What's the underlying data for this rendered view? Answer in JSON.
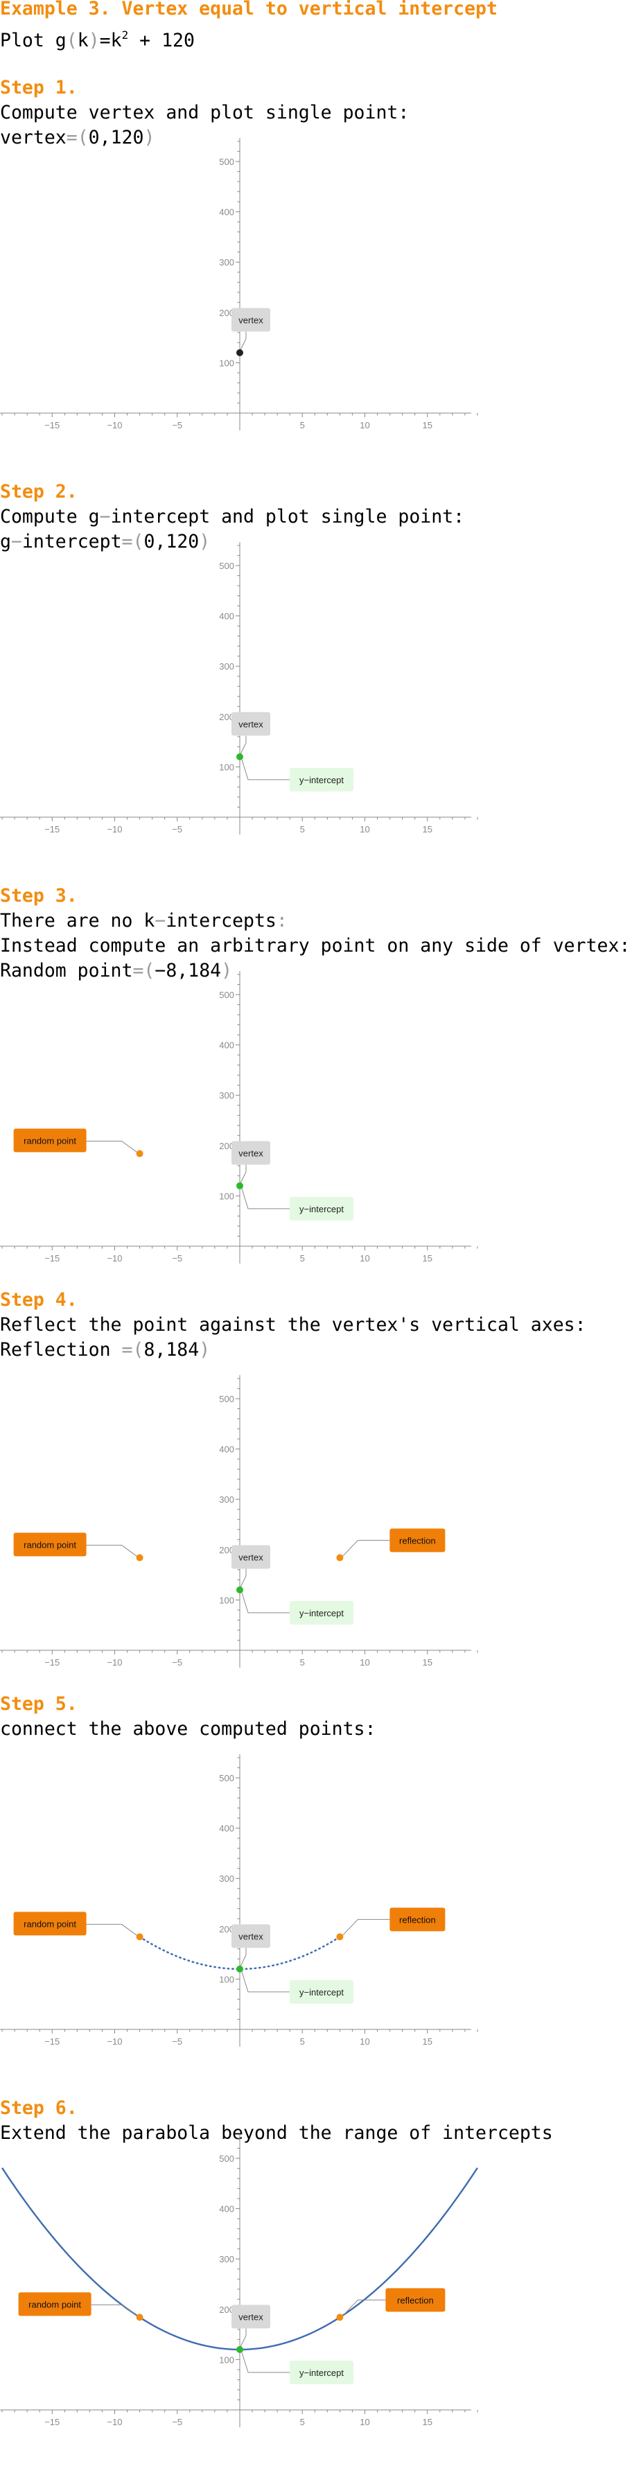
{
  "title": "Example 3. Vertex equal to vertical intercept",
  "plot_line": {
    "prefix": "Plot ",
    "fn": "g",
    "var": "k",
    "rest_pre": "=k",
    "exp": "2",
    "rest_post": " + 120"
  },
  "steps": [
    {
      "heading": "Step 1.",
      "lines": [
        [
          "Compute vertex and plot single point:"
        ],
        [
          "vertex",
          "=",
          "(",
          "0,120",
          ")"
        ]
      ]
    },
    {
      "heading": "Step 2.",
      "lines": [
        [
          "Compute g",
          "−",
          "intercept and plot single point:"
        ],
        [
          "g",
          "−",
          "intercept",
          "=",
          "(",
          "0,120",
          ")"
        ]
      ]
    },
    {
      "heading": "Step 3.",
      "lines": [
        [
          "There are no k",
          "−",
          "intercepts",
          ":"
        ],
        [
          "Instead compute an arbitrary point on any side of vertex:"
        ],
        [
          "Random point",
          "=",
          "(",
          "−8,184",
          ")"
        ]
      ]
    },
    {
      "heading": "Step 4.",
      "lines": [
        [
          "Reflect the point against the vertex's vertical axes:"
        ],
        [
          "Reflection ",
          "=",
          "(",
          "8,184",
          ")"
        ]
      ]
    },
    {
      "heading": "Step 5.",
      "lines": [
        [
          "connect the above computed points:"
        ]
      ]
    },
    {
      "heading": "Step 6.",
      "lines": [
        [
          "Extend the parabola beyond the range of intercepts"
        ]
      ]
    }
  ],
  "labels": {
    "vertex": "vertex",
    "y_intercept": "y−intercept",
    "random_point": "random point",
    "reflection": "reflection"
  },
  "colors": {
    "heading": "#f28d10",
    "vertex_point": "#222222",
    "intercept_point": "#2db82d",
    "random_point": "#f28d10",
    "curve": "#3f6cb0",
    "vertex_label_bg": "#d9d9d9",
    "intercept_label_bg": "#e4f9e1",
    "orange_label_bg": "#f07f09",
    "axis": "#888888"
  },
  "chart_data": [
    {
      "type": "scatter",
      "function": "g(k)=k^2+120",
      "xlim": [
        -19,
        19
      ],
      "ylim": [
        0,
        540
      ],
      "x_ticks": [
        -15,
        -10,
        -5,
        5,
        10,
        15
      ],
      "y_ticks": [
        100,
        200,
        300,
        400,
        500
      ],
      "points": [
        {
          "name": "vertex",
          "x": 0,
          "y": 120
        }
      ],
      "curve": "none"
    },
    {
      "type": "scatter",
      "function": "g(k)=k^2+120",
      "xlim": [
        -19,
        19
      ],
      "ylim": [
        0,
        540
      ],
      "x_ticks": [
        -15,
        -10,
        -5,
        5,
        10,
        15
      ],
      "y_ticks": [
        100,
        200,
        300,
        400,
        500
      ],
      "points": [
        {
          "name": "y-intercept",
          "x": 0,
          "y": 120
        }
      ],
      "curve": "none"
    },
    {
      "type": "scatter",
      "function": "g(k)=k^2+120",
      "xlim": [
        -19,
        19
      ],
      "ylim": [
        0,
        540
      ],
      "x_ticks": [
        -15,
        -10,
        -5,
        5,
        10,
        15
      ],
      "y_ticks": [
        100,
        200,
        300,
        400,
        500
      ],
      "points": [
        {
          "name": "y-intercept",
          "x": 0,
          "y": 120
        },
        {
          "name": "random point",
          "x": -8,
          "y": 184
        }
      ],
      "curve": "none"
    },
    {
      "type": "scatter",
      "function": "g(k)=k^2+120",
      "xlim": [
        -19,
        19
      ],
      "ylim": [
        0,
        540
      ],
      "x_ticks": [
        -15,
        -10,
        -5,
        5,
        10,
        15
      ],
      "y_ticks": [
        100,
        200,
        300,
        400,
        500
      ],
      "points": [
        {
          "name": "y-intercept",
          "x": 0,
          "y": 120
        },
        {
          "name": "random point",
          "x": -8,
          "y": 184
        },
        {
          "name": "reflection",
          "x": 8,
          "y": 184
        }
      ],
      "curve": "none"
    },
    {
      "type": "line",
      "function": "g(k)=k^2+120",
      "xlim": [
        -19,
        19
      ],
      "ylim": [
        0,
        540
      ],
      "x_ticks": [
        -15,
        -10,
        -5,
        5,
        10,
        15
      ],
      "y_ticks": [
        100,
        200,
        300,
        400,
        500
      ],
      "points": [
        {
          "name": "y-intercept",
          "x": 0,
          "y": 120
        },
        {
          "name": "random point",
          "x": -8,
          "y": 184
        },
        {
          "name": "reflection",
          "x": 8,
          "y": 184
        }
      ],
      "curve": "dotted",
      "curve_range": [
        -8,
        8
      ]
    },
    {
      "type": "line",
      "function": "g(k)=k^2+120",
      "xlim": [
        -19,
        19
      ],
      "ylim": [
        0,
        540
      ],
      "x_ticks": [
        -15,
        -10,
        -5,
        5,
        10,
        15
      ],
      "y_ticks": [
        100,
        200,
        300,
        400,
        500
      ],
      "points": [
        {
          "name": "y-intercept",
          "x": 0,
          "y": 120
        },
        {
          "name": "random point",
          "x": -8,
          "y": 184
        },
        {
          "name": "reflection",
          "x": 8,
          "y": 184
        }
      ],
      "curve": "solid",
      "curve_range": [
        -19,
        19
      ]
    }
  ]
}
